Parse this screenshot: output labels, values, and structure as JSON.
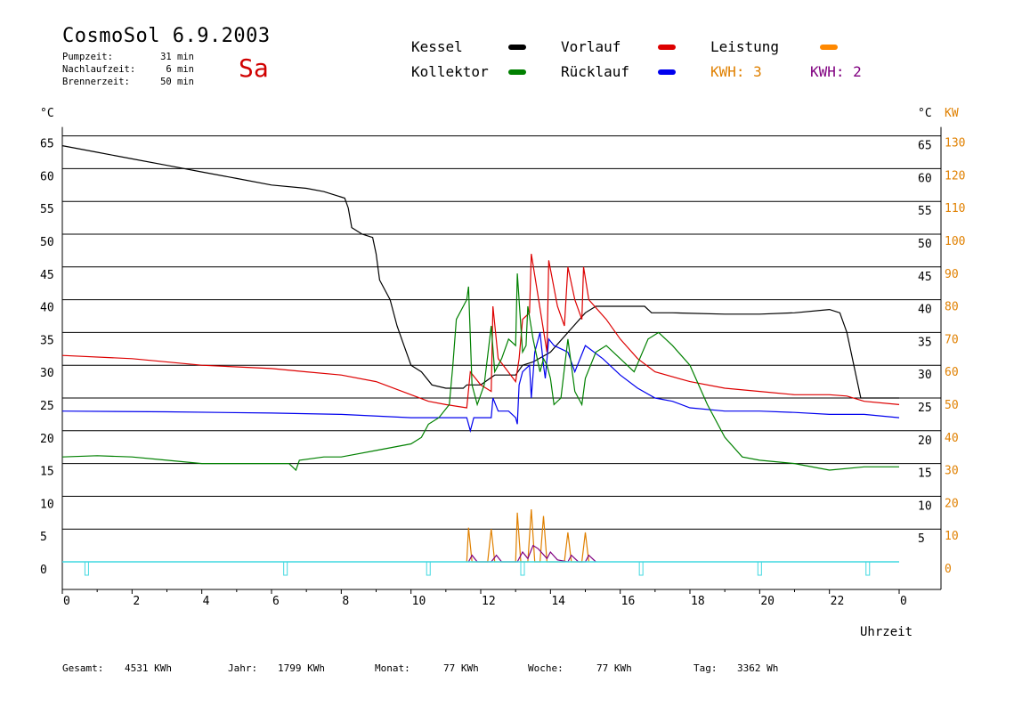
{
  "header": {
    "title": "CosmoSol 6.9.2003",
    "day": "Sa",
    "stats": [
      {
        "label": "Pumpzeit:",
        "value": "31 min"
      },
      {
        "label": "Nachlaufzeit:",
        "value": "6 min"
      },
      {
        "label": "Brennerzeit:",
        "value": "50 min"
      }
    ]
  },
  "legend": {
    "kessel": {
      "label": "Kessel",
      "color": "#000000"
    },
    "vorlauf": {
      "label": "Vorlauf",
      "color": "#dd0000"
    },
    "leistung": {
      "label": "Leistung",
      "color": "#ff8800"
    },
    "kollektor": {
      "label": "Kollektor",
      "color": "#008000"
    },
    "ruecklauf": {
      "label": "Rücklauf",
      "color": "#0000ee"
    },
    "kwh1": {
      "label": "KWH: 3",
      "color": "#e08000"
    },
    "kwh2": {
      "label": "KWH: 2",
      "color": "#800080"
    }
  },
  "axes": {
    "left_unit": "°C",
    "right_unit_c": "°C",
    "right_unit_kw": "KW",
    "x_label": "Uhrzeit"
  },
  "footer": {
    "gesamt_label": "Gesamt:",
    "gesamt_value": "4531 KWh",
    "jahr_label": "Jahr:",
    "jahr_value": "1799 KWh",
    "monat_label": "Monat:",
    "monat_value": "77 KWh",
    "woche_label": "Woche:",
    "woche_value": "77 KWh",
    "tag_label": "Tag:",
    "tag_value": "3362 Wh"
  },
  "chart_data": {
    "type": "line",
    "xlabel": "Uhrzeit",
    "ylabel_left": "°C",
    "ylabel_right": "°C KW",
    "xlim": [
      0,
      24
    ],
    "ylim": [
      0,
      65
    ],
    "grid": true,
    "x_ticks": [
      "0",
      "2",
      "4",
      "6",
      "8",
      "10",
      "12",
      "14",
      "16",
      "18",
      "20",
      "22",
      "0"
    ],
    "y_ticks_left": [
      "0",
      "5",
      "10",
      "15",
      "20",
      "25",
      "30",
      "35",
      "40",
      "45",
      "50",
      "55",
      "60",
      "65"
    ],
    "y_ticks_right_c": [
      "5",
      "10",
      "15",
      "20",
      "25",
      "30",
      "35",
      "40",
      "45",
      "50",
      "55",
      "60",
      "65"
    ],
    "y_ticks_right_kw": [
      "0",
      "10",
      "20",
      "30",
      "40",
      "50",
      "60",
      "70",
      "80",
      "90",
      "100",
      "110",
      "120",
      "130"
    ],
    "series": [
      {
        "name": "Kessel",
        "color": "#000000",
        "points": [
          [
            0,
            63.5
          ],
          [
            1,
            62.5
          ],
          [
            2,
            61.5
          ],
          [
            3,
            60.5
          ],
          [
            4,
            59.5
          ],
          [
            5,
            58.5
          ],
          [
            6,
            57.5
          ],
          [
            7,
            57
          ],
          [
            7.5,
            56.5
          ],
          [
            8.1,
            55.5
          ],
          [
            8.2,
            54
          ],
          [
            8.3,
            51
          ],
          [
            8.6,
            50
          ],
          [
            8.9,
            49.5
          ],
          [
            9.0,
            47
          ],
          [
            9.1,
            43
          ],
          [
            9.4,
            40
          ],
          [
            9.6,
            36
          ],
          [
            9.8,
            33
          ],
          [
            10,
            30
          ],
          [
            10.3,
            29
          ],
          [
            10.6,
            27
          ],
          [
            11,
            26.5
          ],
          [
            11.5,
            26.5
          ],
          [
            11.6,
            27
          ],
          [
            12,
            27
          ],
          [
            12.4,
            28.5
          ],
          [
            13,
            28.5
          ],
          [
            13.2,
            30
          ],
          [
            13.5,
            30.5
          ],
          [
            14,
            32
          ],
          [
            14.5,
            35
          ],
          [
            15.0,
            38
          ],
          [
            15.3,
            39
          ],
          [
            16,
            39
          ],
          [
            16.7,
            39
          ],
          [
            16.9,
            38
          ],
          [
            17.5,
            38
          ],
          [
            19,
            37.8
          ],
          [
            20,
            37.8
          ],
          [
            21,
            38
          ],
          [
            22,
            38.5
          ],
          [
            22.3,
            38
          ],
          [
            22.5,
            35
          ],
          [
            22.7,
            30
          ],
          [
            22.9,
            25
          ],
          [
            23.3,
            25
          ],
          [
            24,
            25
          ]
        ]
      },
      {
        "name": "Vorlauf",
        "color": "#dd0000",
        "points": [
          [
            0,
            31.5
          ],
          [
            2,
            31
          ],
          [
            4,
            30
          ],
          [
            6,
            29.5
          ],
          [
            7,
            29
          ],
          [
            8,
            28.5
          ],
          [
            9,
            27.5
          ],
          [
            10,
            25.5
          ],
          [
            10.5,
            24.5
          ],
          [
            11.0,
            24
          ],
          [
            11.6,
            23.5
          ],
          [
            11.7,
            29
          ],
          [
            12.0,
            27
          ],
          [
            12.3,
            26
          ],
          [
            12.35,
            39
          ],
          [
            12.5,
            31
          ],
          [
            13.0,
            27.5
          ],
          [
            13.1,
            31
          ],
          [
            13.2,
            37
          ],
          [
            13.4,
            38
          ],
          [
            13.45,
            47
          ],
          [
            13.6,
            42
          ],
          [
            13.9,
            32
          ],
          [
            13.95,
            46
          ],
          [
            14.2,
            39
          ],
          [
            14.4,
            36
          ],
          [
            14.5,
            45
          ],
          [
            14.7,
            40
          ],
          [
            14.9,
            37
          ],
          [
            14.95,
            45
          ],
          [
            15.1,
            40
          ],
          [
            15.6,
            37
          ],
          [
            16,
            34
          ],
          [
            16.5,
            31
          ],
          [
            17,
            29
          ],
          [
            18,
            27.5
          ],
          [
            19,
            26.5
          ],
          [
            20,
            26
          ],
          [
            21,
            25.5
          ],
          [
            22,
            25.5
          ],
          [
            22.5,
            25.3
          ],
          [
            23,
            24.5
          ],
          [
            24,
            24
          ]
        ]
      },
      {
        "name": "Rücklauf",
        "color": "#0000ee",
        "points": [
          [
            0,
            23
          ],
          [
            3,
            22.9
          ],
          [
            6,
            22.7
          ],
          [
            8,
            22.5
          ],
          [
            10,
            22
          ],
          [
            11,
            22
          ],
          [
            11.6,
            22
          ],
          [
            11.7,
            20
          ],
          [
            11.8,
            22
          ],
          [
            12.3,
            22
          ],
          [
            12.35,
            25
          ],
          [
            12.5,
            23
          ],
          [
            12.8,
            23
          ],
          [
            13.0,
            22
          ],
          [
            13.05,
            21
          ],
          [
            13.1,
            27
          ],
          [
            13.2,
            29
          ],
          [
            13.4,
            30
          ],
          [
            13.45,
            25
          ],
          [
            13.55,
            32
          ],
          [
            13.7,
            35
          ],
          [
            13.8,
            30
          ],
          [
            13.85,
            28
          ],
          [
            13.95,
            34
          ],
          [
            14.1,
            33
          ],
          [
            14.5,
            32
          ],
          [
            14.7,
            29
          ],
          [
            15,
            33
          ],
          [
            15.5,
            31
          ],
          [
            16,
            28.5
          ],
          [
            16.5,
            26.5
          ],
          [
            17,
            25
          ],
          [
            17.5,
            24.5
          ],
          [
            18,
            23.5
          ],
          [
            19,
            23
          ],
          [
            20,
            23
          ],
          [
            21,
            22.8
          ],
          [
            22,
            22.5
          ],
          [
            23,
            22.5
          ],
          [
            24,
            22
          ]
        ]
      },
      {
        "name": "Kollektor",
        "color": "#008000",
        "points": [
          [
            0,
            16
          ],
          [
            1,
            16.2
          ],
          [
            2,
            16
          ],
          [
            3,
            15.5
          ],
          [
            4,
            15
          ],
          [
            5,
            15
          ],
          [
            6,
            15
          ],
          [
            6.5,
            15
          ],
          [
            6.7,
            14
          ],
          [
            6.8,
            15.5
          ],
          [
            7.5,
            16
          ],
          [
            8,
            16
          ],
          [
            9,
            17
          ],
          [
            10,
            18
          ],
          [
            10.3,
            19
          ],
          [
            10.5,
            21
          ],
          [
            10.8,
            22
          ],
          [
            11.1,
            24
          ],
          [
            11.2,
            30
          ],
          [
            11.3,
            37
          ],
          [
            11.6,
            40
          ],
          [
            11.65,
            42
          ],
          [
            11.75,
            27
          ],
          [
            11.9,
            24
          ],
          [
            12.1,
            27
          ],
          [
            12.3,
            36
          ],
          [
            12.4,
            29
          ],
          [
            12.6,
            31
          ],
          [
            12.8,
            34
          ],
          [
            13.0,
            33
          ],
          [
            13.05,
            44
          ],
          [
            13.2,
            32
          ],
          [
            13.3,
            33
          ],
          [
            13.35,
            39
          ],
          [
            13.5,
            34
          ],
          [
            13.7,
            29
          ],
          [
            13.8,
            31
          ],
          [
            13.9,
            30
          ],
          [
            14.0,
            28
          ],
          [
            14.1,
            24
          ],
          [
            14.3,
            25
          ],
          [
            14.5,
            34
          ],
          [
            14.7,
            26
          ],
          [
            14.9,
            24
          ],
          [
            15.0,
            28
          ],
          [
            15.3,
            32
          ],
          [
            15.6,
            33
          ],
          [
            16,
            31
          ],
          [
            16.4,
            29
          ],
          [
            16.8,
            34
          ],
          [
            17.1,
            35
          ],
          [
            17.5,
            33
          ],
          [
            18,
            30
          ],
          [
            18.5,
            24
          ],
          [
            19,
            19
          ],
          [
            19.5,
            16
          ],
          [
            20,
            15.5
          ],
          [
            21,
            15
          ],
          [
            22,
            14
          ],
          [
            23,
            14.5
          ],
          [
            24,
            14.5
          ]
        ]
      },
      {
        "name": "Leistung",
        "color": "#e08000",
        "points": [
          [
            11.6,
            0
          ],
          [
            11.65,
            5.2
          ],
          [
            11.75,
            0
          ],
          [
            12.2,
            0
          ],
          [
            12.3,
            5
          ],
          [
            12.4,
            0
          ],
          [
            13.0,
            0
          ],
          [
            13.05,
            7.5
          ],
          [
            13.15,
            0
          ],
          [
            13.35,
            0
          ],
          [
            13.45,
            8
          ],
          [
            13.55,
            0
          ],
          [
            13.7,
            0
          ],
          [
            13.8,
            7
          ],
          [
            13.9,
            0
          ],
          [
            14.4,
            0
          ],
          [
            14.5,
            4.5
          ],
          [
            14.6,
            0
          ],
          [
            14.9,
            0
          ],
          [
            15.0,
            4.5
          ],
          [
            15.1,
            0
          ]
        ]
      },
      {
        "name": "KWH",
        "color": "#800080",
        "points": [
          [
            11.65,
            0
          ],
          [
            11.75,
            1
          ],
          [
            11.9,
            0
          ],
          [
            12.3,
            0
          ],
          [
            12.45,
            1
          ],
          [
            12.6,
            0
          ],
          [
            13.05,
            0
          ],
          [
            13.2,
            1.5
          ],
          [
            13.35,
            0.5
          ],
          [
            13.5,
            2.5
          ],
          [
            13.65,
            2
          ],
          [
            13.9,
            0.5
          ],
          [
            14,
            1.5
          ],
          [
            14.2,
            0.3
          ],
          [
            14.5,
            0
          ],
          [
            14.6,
            1
          ],
          [
            14.8,
            0
          ],
          [
            15,
            0
          ],
          [
            15.1,
            1
          ],
          [
            15.3,
            0
          ]
        ]
      }
    ],
    "pump_markers": [
      0.7,
      6.4,
      10.5,
      13.2,
      16.6,
      20.0,
      23.1
    ]
  }
}
